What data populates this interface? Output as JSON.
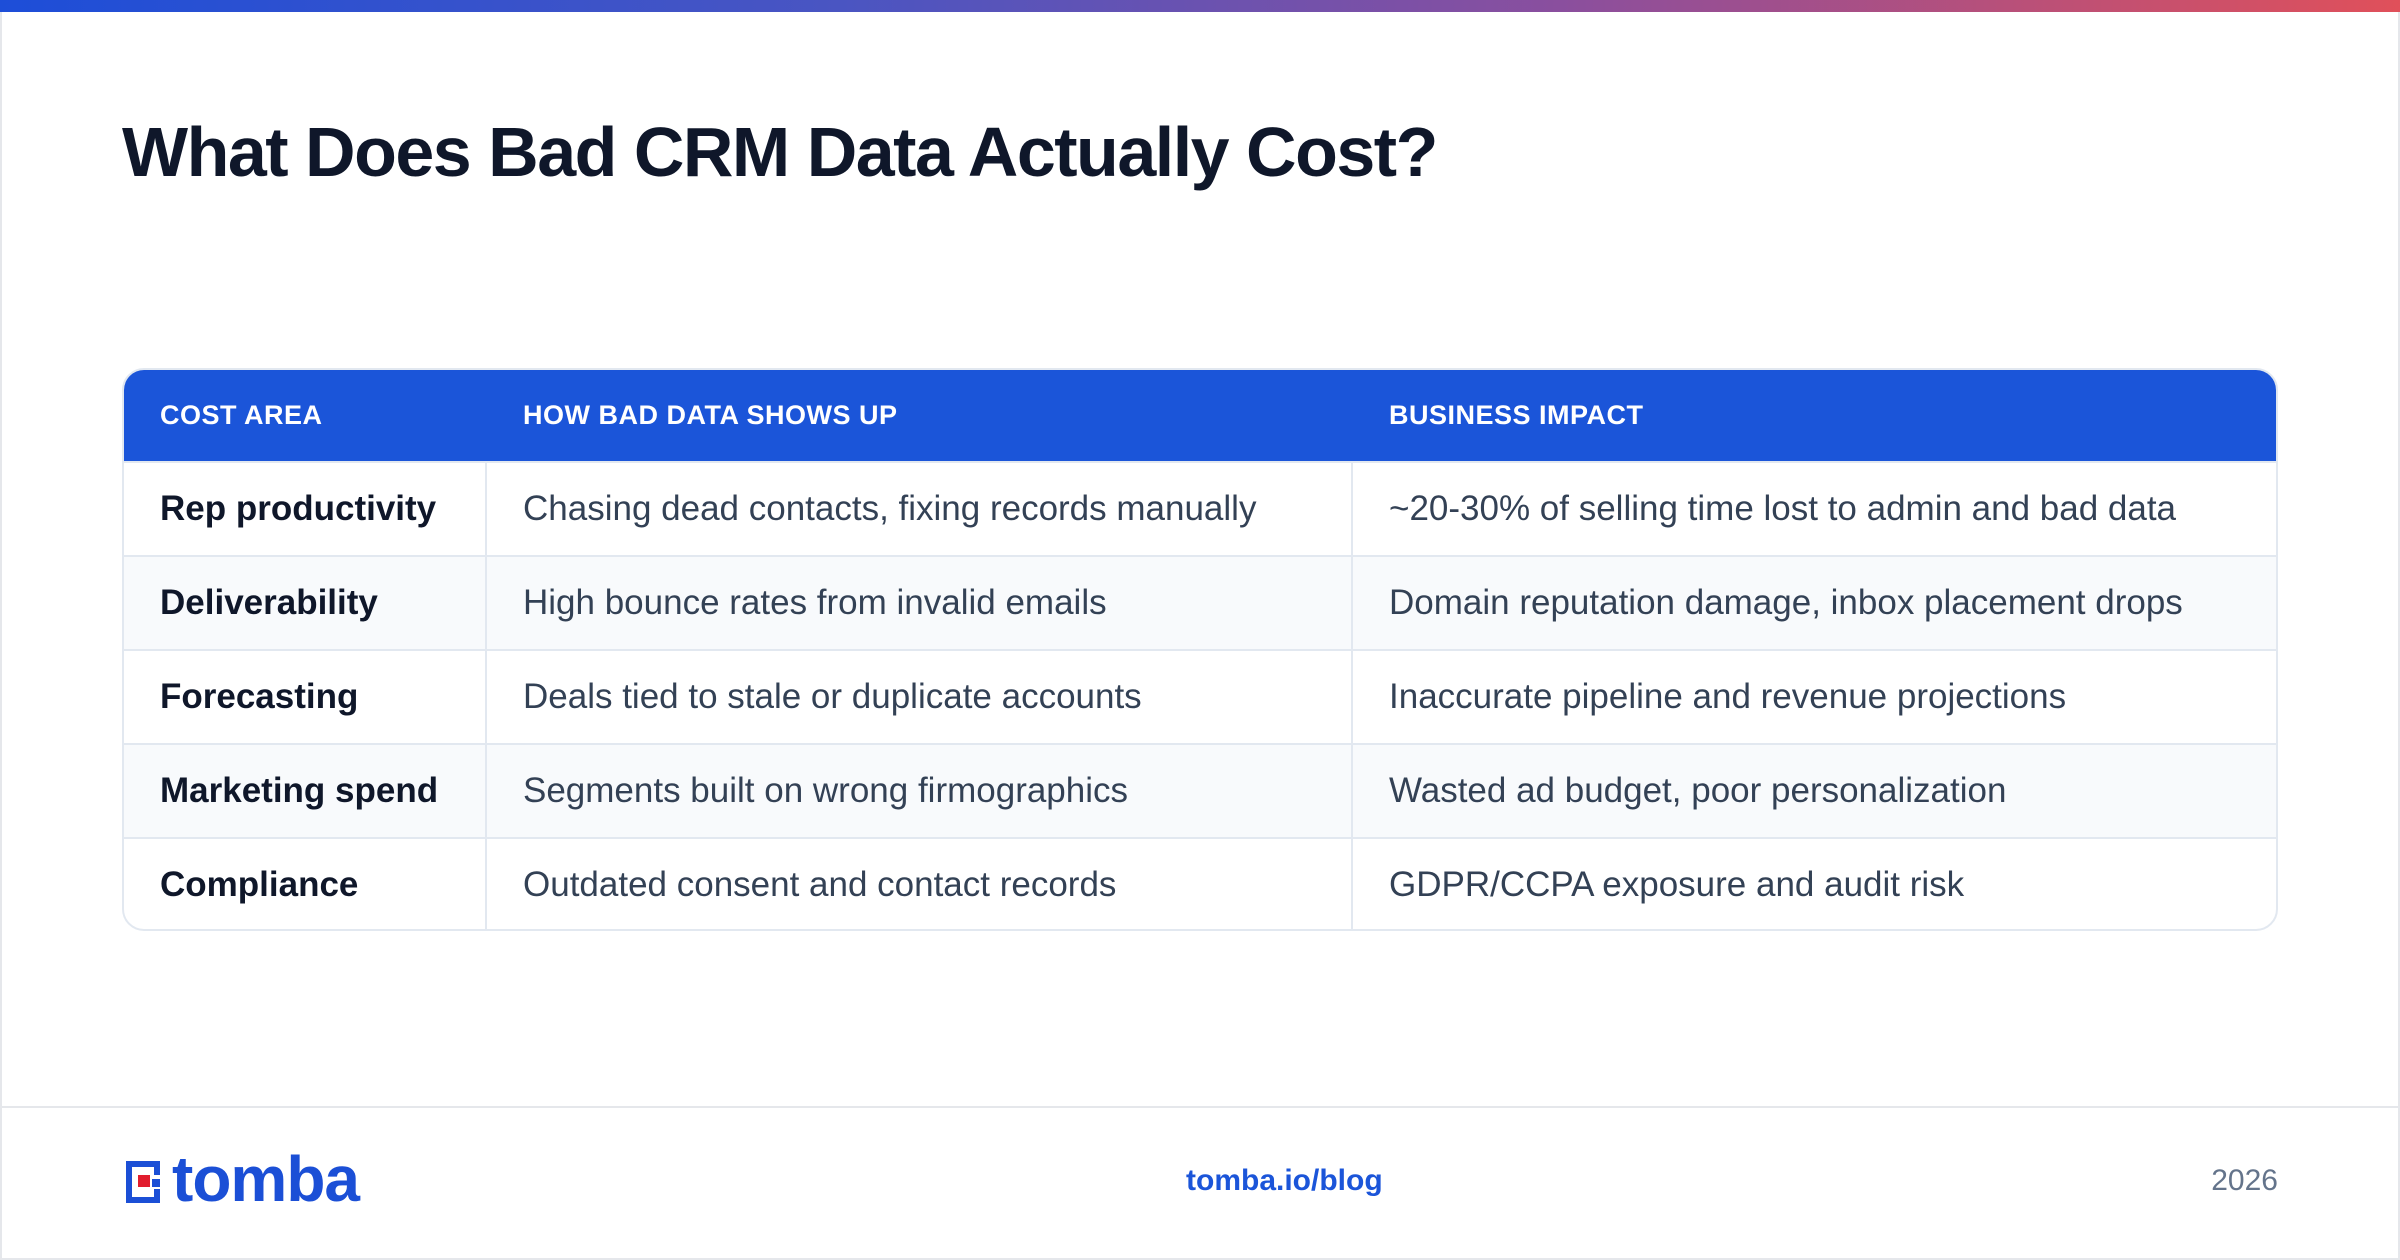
{
  "title": "What Does Bad CRM Data Actually Cost?",
  "colors": {
    "accent": "#1b55d9",
    "gradient_start": "#1d4ed8",
    "gradient_end": "#e0505a",
    "logo_red": "#e11d2e"
  },
  "table": {
    "headers": [
      "COST AREA",
      "HOW BAD DATA SHOWS UP",
      "BUSINESS IMPACT"
    ],
    "rows": [
      [
        "Rep productivity",
        "Chasing dead contacts, fixing records manually",
        "~20-30% of selling time lost to admin and bad data"
      ],
      [
        "Deliverability",
        "High bounce rates from invalid emails",
        "Domain reputation damage, inbox placement drops"
      ],
      [
        "Forecasting",
        "Deals tied to stale or duplicate accounts",
        "Inaccurate pipeline and revenue projections"
      ],
      [
        "Marketing spend",
        "Segments built on wrong firmographics",
        "Wasted ad budget, poor personalization"
      ],
      [
        "Compliance",
        "Outdated consent and contact records",
        "GDPR/CCPA exposure and audit risk"
      ]
    ]
  },
  "footer": {
    "logo_text": "tomba",
    "logo_icon": "tomba-logo-icon",
    "link": "tomba.io/blog",
    "year": "2026"
  }
}
